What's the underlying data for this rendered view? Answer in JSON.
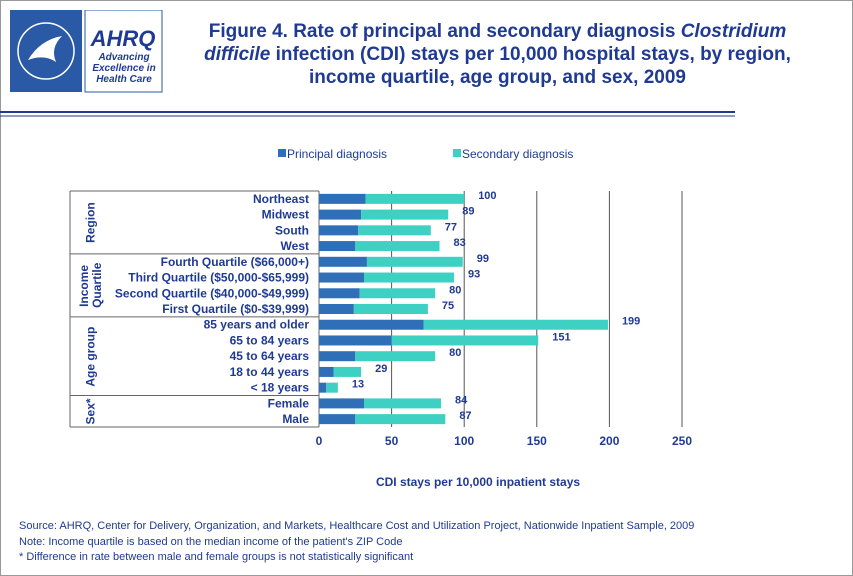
{
  "logo": {
    "name": "AHRQ",
    "tagline": "Advancing Excellence in Health Care"
  },
  "chart_data": {
    "type": "stacked-bar-horizontal",
    "title": [
      "Figure 4. Rate of principal and secondary diagnosis ",
      "Clostridium difficile",
      " infection (CDI) stays per 10,000 hospital stays, by region, income quartile, age group, and sex, 2009"
    ],
    "groups": [
      {
        "label": "Region",
        "categories": [
          "Northeast",
          "Midwest",
          "South",
          "West"
        ]
      },
      {
        "label": "Income Quartile",
        "categories": [
          "Fourth Quartile ($66,000+)",
          "Third Quartile ($50,000-$65,999)",
          "Second Quartile ($40,000-$49,999)",
          "First Quartile ($0-$39,999)"
        ]
      },
      {
        "label": "Age group",
        "categories": [
          "85 years and older",
          "65 to 84 years",
          "45 to 64 years",
          "18 to 44 years",
          "< 18 years"
        ]
      },
      {
        "label": "Sex*",
        "categories": [
          "Female",
          "Male"
        ]
      }
    ],
    "series": [
      {
        "name": "Principal diagnosis",
        "color": "#2e6fb7",
        "values": [
          32,
          29,
          27,
          25,
          33,
          31,
          28,
          24,
          72,
          50,
          25,
          10,
          5,
          31,
          25
        ]
      },
      {
        "name": "Secondary diagnosis",
        "color": "#3fd0c4",
        "values": [
          68,
          60,
          50,
          58,
          66,
          62,
          52,
          51,
          127,
          101,
          55,
          19,
          8,
          53,
          62
        ]
      }
    ],
    "totals": [
      100,
      89,
      77,
      83,
      99,
      93,
      80,
      75,
      199,
      151,
      80,
      29,
      13,
      84,
      87
    ],
    "xlim": [
      0,
      250
    ],
    "xticks": [
      0,
      50,
      100,
      150,
      200,
      250
    ],
    "grid": true,
    "xlabel": "CDI stays per 10,000 inpatient stays",
    "notes": [
      "Source: AHRQ, Center for Delivery, Organization, and Markets, Healthcare Cost and Utilization Project, Nationwide Inpatient Sample, 2009",
      "Note: Income quartile is based on the median income of the patient's ZIP Code",
      "* Difference in rate between male and female groups is not statistically significant"
    ]
  }
}
